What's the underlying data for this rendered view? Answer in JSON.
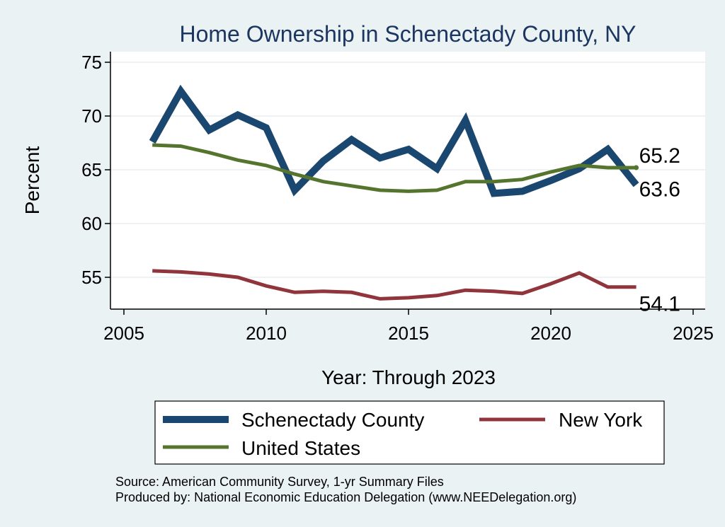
{
  "chart_data": {
    "type": "line",
    "title": "Home Ownership in Schenectady County, NY",
    "xlabel": "Year: Through 2023",
    "ylabel": "Percent",
    "xlim": [
      2005,
      2025
    ],
    "ylim": [
      52,
      76
    ],
    "xticks": [
      2005,
      2010,
      2015,
      2020,
      2025
    ],
    "yticks": [
      55,
      60,
      65,
      70,
      75
    ],
    "x": [
      2006,
      2007,
      2008,
      2009,
      2010,
      2011,
      2012,
      2013,
      2014,
      2015,
      2016,
      2017,
      2018,
      2019,
      2020,
      2021,
      2022,
      2023
    ],
    "series": [
      {
        "name": "Schenectady County",
        "color": "#1a476f",
        "values": [
          67.6,
          72.3,
          68.7,
          70.1,
          68.9,
          63.1,
          65.8,
          67.8,
          66.1,
          66.9,
          65.1,
          69.6,
          62.8,
          63.0,
          64.0,
          65.1,
          66.9,
          63.6
        ],
        "end_label": "63.6"
      },
      {
        "name": "United States",
        "color": "#55752f",
        "values": [
          67.3,
          67.2,
          66.6,
          65.9,
          65.4,
          64.6,
          63.9,
          63.5,
          63.1,
          63.0,
          63.1,
          63.9,
          63.9,
          64.1,
          64.8,
          65.4,
          65.2,
          65.2
        ],
        "end_label": "65.2"
      },
      {
        "name": "New York",
        "color": "#90353b",
        "values": [
          55.6,
          55.5,
          55.3,
          55.0,
          54.2,
          53.6,
          53.7,
          53.6,
          53.0,
          53.1,
          53.3,
          53.8,
          53.7,
          53.5,
          54.4,
          55.4,
          54.1,
          54.1
        ],
        "end_label": "54.1"
      }
    ],
    "legend": [
      "Schenectady County",
      "New York",
      "United States"
    ],
    "legend_position": "bottom",
    "grid": true,
    "source": "Source: American Community Survey, 1-yr Summary Files",
    "producer": "Produced by: National Economic Education Delegation (www.NEEDelegation.org)"
  },
  "colors": {
    "background": "#eaf2f3",
    "plot_background": "#ffffff",
    "title": "#1c3661"
  }
}
